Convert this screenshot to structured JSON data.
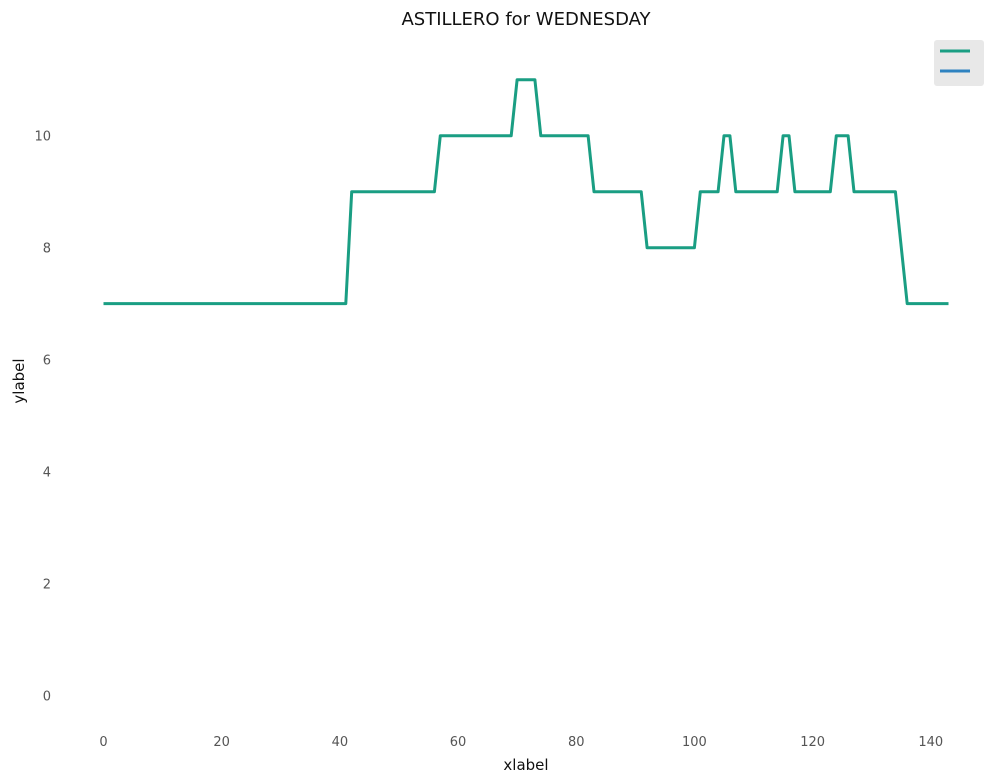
{
  "colors": {
    "background": "#ffffff",
    "legend_background": "#e8e8e8",
    "series_1": "#1a9e83",
    "series_2": "#2e82c0",
    "tick_text": "#555555"
  },
  "chart_data": {
    "type": "line",
    "title": "ASTILLERO for WEDNESDAY",
    "xlabel": "xlabel",
    "ylabel": "ylabel",
    "xlim": [
      -6,
      149
    ],
    "ylim": [
      -0.6,
      11.8
    ],
    "xticks": [
      0,
      20,
      40,
      60,
      80,
      100,
      120,
      140
    ],
    "yticks": [
      0,
      2,
      4,
      6,
      8,
      10
    ],
    "grid": false,
    "legend": "top-right",
    "series": [
      {
        "name": "",
        "color": "#1a9e83",
        "points": [
          [
            0,
            7
          ],
          [
            41,
            7
          ],
          [
            42,
            9
          ],
          [
            56,
            9
          ],
          [
            57,
            10
          ],
          [
            69,
            10
          ],
          [
            70,
            11
          ],
          [
            73,
            11
          ],
          [
            74,
            10
          ],
          [
            82,
            10
          ],
          [
            83,
            9
          ],
          [
            91,
            9
          ],
          [
            92,
            8
          ],
          [
            100,
            8
          ],
          [
            101,
            9
          ],
          [
            104,
            9
          ],
          [
            105,
            10
          ],
          [
            106,
            10
          ],
          [
            107,
            9
          ],
          [
            114,
            9
          ],
          [
            115,
            10
          ],
          [
            116,
            10
          ],
          [
            117,
            9
          ],
          [
            123,
            9
          ],
          [
            124,
            10
          ],
          [
            126,
            10
          ],
          [
            127,
            9
          ],
          [
            134,
            9
          ],
          [
            136,
            7
          ],
          [
            143,
            7
          ]
        ]
      },
      {
        "name": "",
        "color": "#2e82c0",
        "points": []
      }
    ]
  }
}
